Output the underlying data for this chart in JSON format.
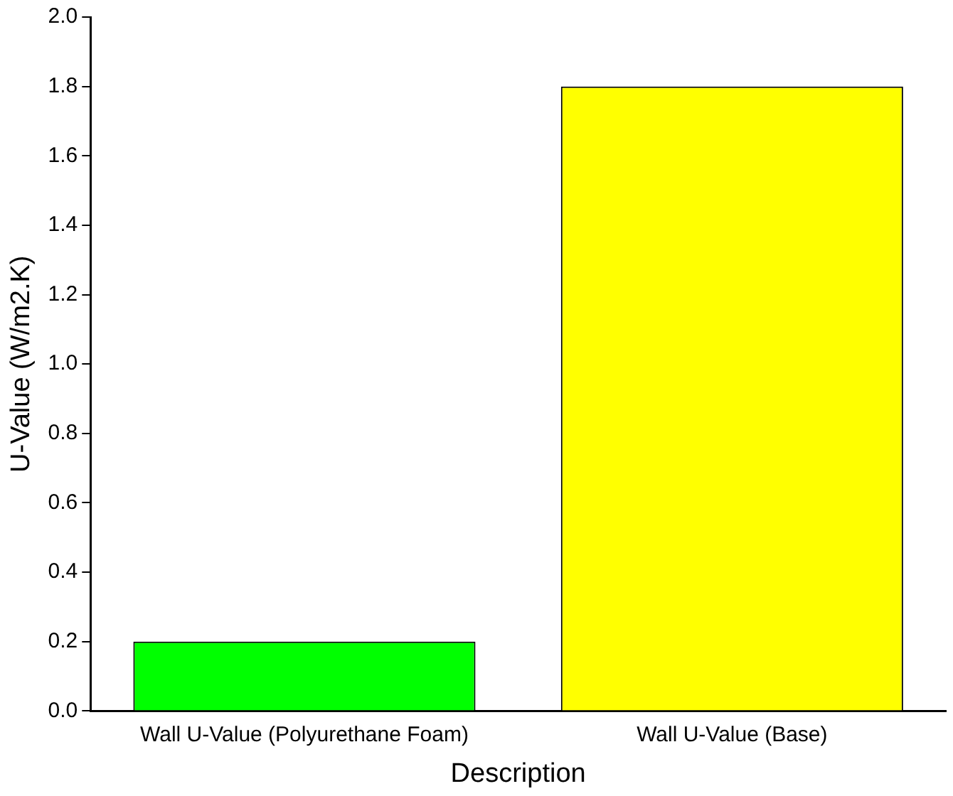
{
  "chart_data": {
    "type": "bar",
    "xlabel": "Description",
    "ylabel": "U-Value (W/m2.K)",
    "categories": [
      "Wall U-Value (Polyurethane Foam)",
      "Wall U-Value (Base)"
    ],
    "values": [
      0.2,
      1.8
    ],
    "colors": [
      "#00ff00",
      "#ffff00"
    ],
    "ylim": [
      0,
      2
    ],
    "yticks": [
      {
        "value": 0,
        "label": "0.0"
      },
      0.2,
      0.4,
      0.6,
      0.8,
      {
        "value": 1,
        "label": "1.0"
      },
      1.2,
      1.4,
      1.6,
      1.8,
      {
        "value": 2,
        "label": "2.0"
      }
    ],
    "grid": false,
    "legend": false
  }
}
